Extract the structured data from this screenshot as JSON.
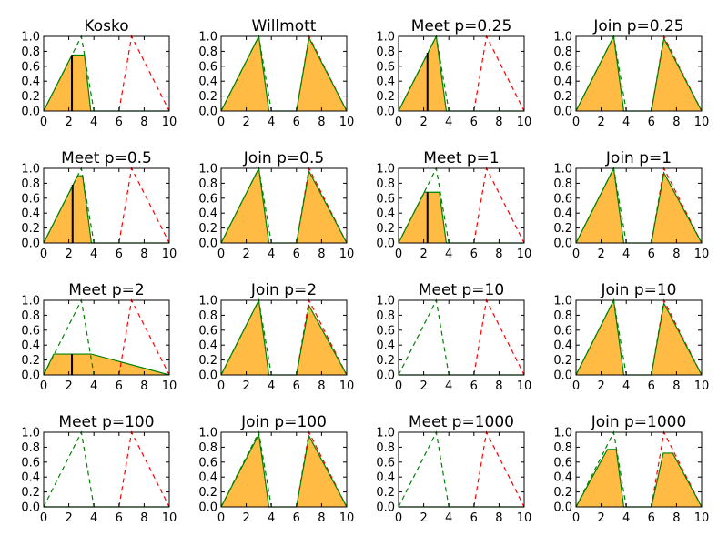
{
  "chart_data": {
    "type": "area",
    "xlim": [
      0,
      10
    ],
    "ylim": [
      0,
      1
    ],
    "xticks": [
      "0",
      "2",
      "4",
      "6",
      "8",
      "10"
    ],
    "yticks": [
      "0.0",
      "0.2",
      "0.4",
      "0.6",
      "0.8",
      "1.0"
    ],
    "grid": false,
    "legend": "none",
    "colors": {
      "fill": "#ffbb44",
      "set_a": "#008000",
      "set_b": "#ff0000",
      "marker": "#000000",
      "frame": "#000000"
    },
    "reference_series": [
      {
        "x": [
          0,
          3,
          4
        ],
        "y": [
          0,
          1,
          0
        ],
        "color": "set_a",
        "style": "dashed"
      },
      {
        "x": [
          6,
          7,
          10
        ],
        "y": [
          0,
          1,
          0
        ],
        "color": "set_b",
        "style": "dashed"
      }
    ],
    "panels": [
      {
        "title": "Kosko",
        "x": [
          0,
          2.25,
          3.25,
          3.75,
          10
        ],
        "y": [
          0,
          0.75,
          0.75,
          0,
          0
        ],
        "marker": {
          "x": 2.25,
          "y": 0.75
        }
      },
      {
        "title": "Willmott",
        "x": [
          0,
          3,
          3.8,
          6,
          7,
          10
        ],
        "y": [
          0,
          1,
          0,
          0,
          0.98,
          0
        ],
        "marker": null
      },
      {
        "title": "Meet p=0.25",
        "x": [
          0,
          3,
          3.8,
          10
        ],
        "y": [
          0,
          1,
          0,
          0
        ],
        "marker": {
          "x": 2.3,
          "y": 0.78
        }
      },
      {
        "title": "Join p=0.25",
        "x": [
          0,
          3,
          3.8,
          6,
          7,
          10
        ],
        "y": [
          0,
          1,
          0,
          0,
          0.97,
          0
        ],
        "marker": null
      },
      {
        "title": "Meet p=0.5",
        "x": [
          0,
          2.7,
          3.1,
          3.8,
          10
        ],
        "y": [
          0,
          0.9,
          0.9,
          0,
          0
        ],
        "marker": {
          "x": 2.3,
          "y": 0.78
        }
      },
      {
        "title": "Join p=0.5",
        "x": [
          0,
          3,
          3.8,
          6,
          7,
          10
        ],
        "y": [
          0,
          1,
          0,
          0,
          0.96,
          0
        ],
        "marker": null
      },
      {
        "title": "Meet p=1",
        "x": [
          0,
          2.05,
          3.25,
          3.8,
          10
        ],
        "y": [
          0,
          0.68,
          0.68,
          0,
          0
        ],
        "marker": {
          "x": 2.3,
          "y": 0.68
        }
      },
      {
        "title": "Join p=1",
        "x": [
          0,
          3,
          3.8,
          6,
          7,
          10
        ],
        "y": [
          0,
          1,
          0,
          0,
          0.94,
          0
        ],
        "marker": null
      },
      {
        "title": "Meet p=2",
        "x": [
          0,
          0.8,
          3.8,
          10
        ],
        "y": [
          0,
          0.28,
          0.28,
          0
        ],
        "marker": {
          "x": 2.25,
          "y": 0.28
        }
      },
      {
        "title": "Join p=2",
        "x": [
          0,
          3,
          3.8,
          6,
          7,
          10
        ],
        "y": [
          0,
          1,
          0,
          0,
          0.93,
          0
        ],
        "marker": null
      },
      {
        "title": "Meet p=10",
        "x": [
          0,
          10
        ],
        "y": [
          0,
          0
        ],
        "marker": null
      },
      {
        "title": "Join p=10",
        "x": [
          0,
          3,
          3.8,
          6,
          7,
          10
        ],
        "y": [
          0,
          1,
          0,
          0,
          0.96,
          0
        ],
        "marker": null
      },
      {
        "title": "Meet p=100",
        "x": [
          0,
          10
        ],
        "y": [
          0,
          0
        ],
        "marker": null
      },
      {
        "title": "Join p=100",
        "x": [
          0,
          3,
          3.8,
          6,
          7,
          10
        ],
        "y": [
          0,
          0.97,
          0,
          0,
          0.95,
          0
        ],
        "marker": null
      },
      {
        "title": "Meet p=1000",
        "x": [
          0,
          10
        ],
        "y": [
          0,
          0
        ],
        "marker": null
      },
      {
        "title": "Join p=1000",
        "x": [
          0,
          2.5,
          3.2,
          3.8,
          6,
          6.95,
          7.7,
          10
        ],
        "y": [
          0,
          0.77,
          0.77,
          0,
          0,
          0.72,
          0.72,
          0
        ],
        "marker": null
      }
    ]
  }
}
